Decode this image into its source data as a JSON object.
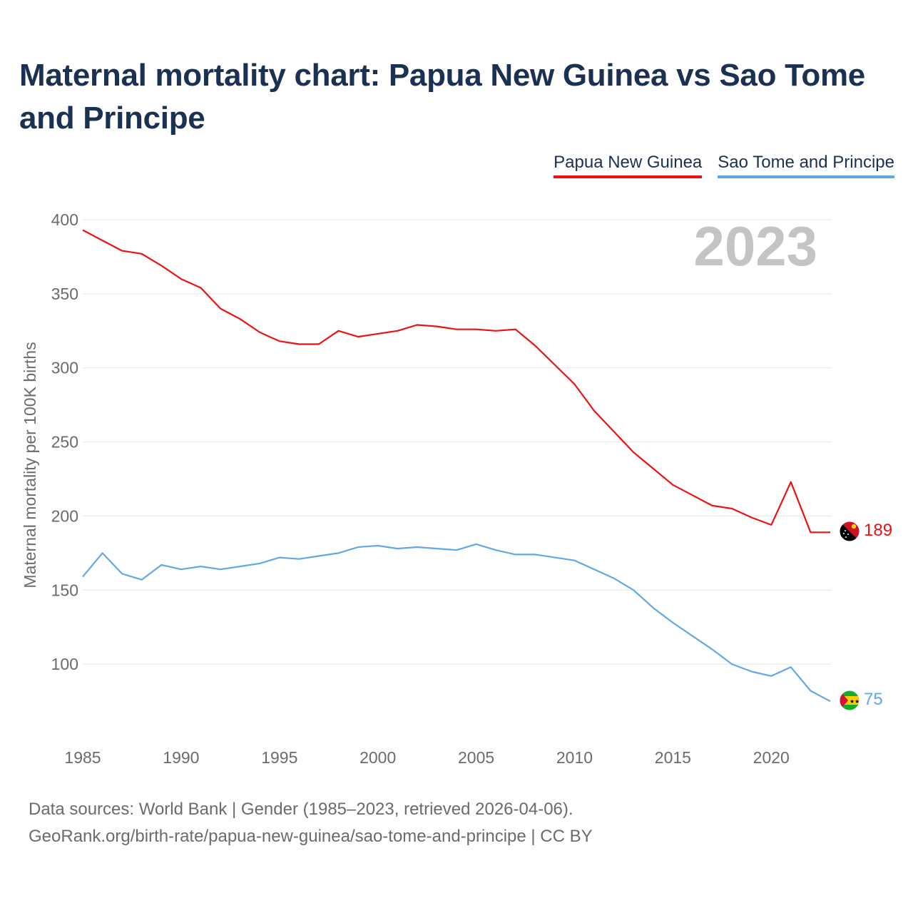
{
  "title": "Maternal mortality chart: Papua New Guinea vs Sao Tome and Principe",
  "legend": {
    "series1": "Papua New Guinea",
    "series2": "Sao Tome and Principe"
  },
  "year_badge": "2023",
  "footer": {
    "line1": "Data sources: World Bank | Gender (1985–2023, retrieved 2026-04-06).",
    "line2": "GeoRank.org/birth-rate/papua-new-guinea/sao-tome-and-principe | CC BY"
  },
  "chart_data": {
    "type": "line",
    "title": "Maternal mortality chart: Papua New Guinea vs Sao Tome and Principe",
    "xlabel": "",
    "ylabel": "Maternal mortality per 100K births",
    "xlim": [
      1985,
      2023
    ],
    "ylim": [
      50,
      400
    ],
    "y_ticks": [
      100,
      150,
      200,
      250,
      300,
      350,
      400
    ],
    "x_ticks": [
      1985,
      1990,
      1995,
      2000,
      2005,
      2010,
      2015,
      2020
    ],
    "x": [
      1985,
      1986,
      1987,
      1988,
      1989,
      1990,
      1991,
      1992,
      1993,
      1994,
      1995,
      1996,
      1997,
      1998,
      1999,
      2000,
      2001,
      2002,
      2003,
      2004,
      2005,
      2006,
      2007,
      2008,
      2009,
      2010,
      2011,
      2012,
      2013,
      2014,
      2015,
      2016,
      2017,
      2018,
      2019,
      2020,
      2021,
      2022,
      2023
    ],
    "series": [
      {
        "name": "Papua New Guinea",
        "color": "#ee1111",
        "end_label": "189",
        "values": [
          393,
          386,
          379,
          377,
          369,
          360,
          354,
          340,
          333,
          324,
          318,
          316,
          316,
          325,
          321,
          323,
          325,
          329,
          328,
          326,
          326,
          325,
          326,
          315,
          302,
          289,
          271,
          257,
          243,
          232,
          221,
          214,
          207,
          205,
          199,
          194,
          223,
          189,
          189
        ]
      },
      {
        "name": "Sao Tome and Principe",
        "color": "#62a8e6",
        "end_label": "75",
        "values": [
          159,
          175,
          161,
          157,
          167,
          164,
          166,
          164,
          166,
          168,
          172,
          171,
          173,
          175,
          179,
          180,
          178,
          179,
          178,
          177,
          181,
          177,
          174,
          174,
          172,
          170,
          164,
          158,
          150,
          138,
          128,
          119,
          110,
          100,
          95,
          92,
          98,
          82,
          75
        ]
      }
    ],
    "grid": true,
    "legend_position": "top-right"
  }
}
